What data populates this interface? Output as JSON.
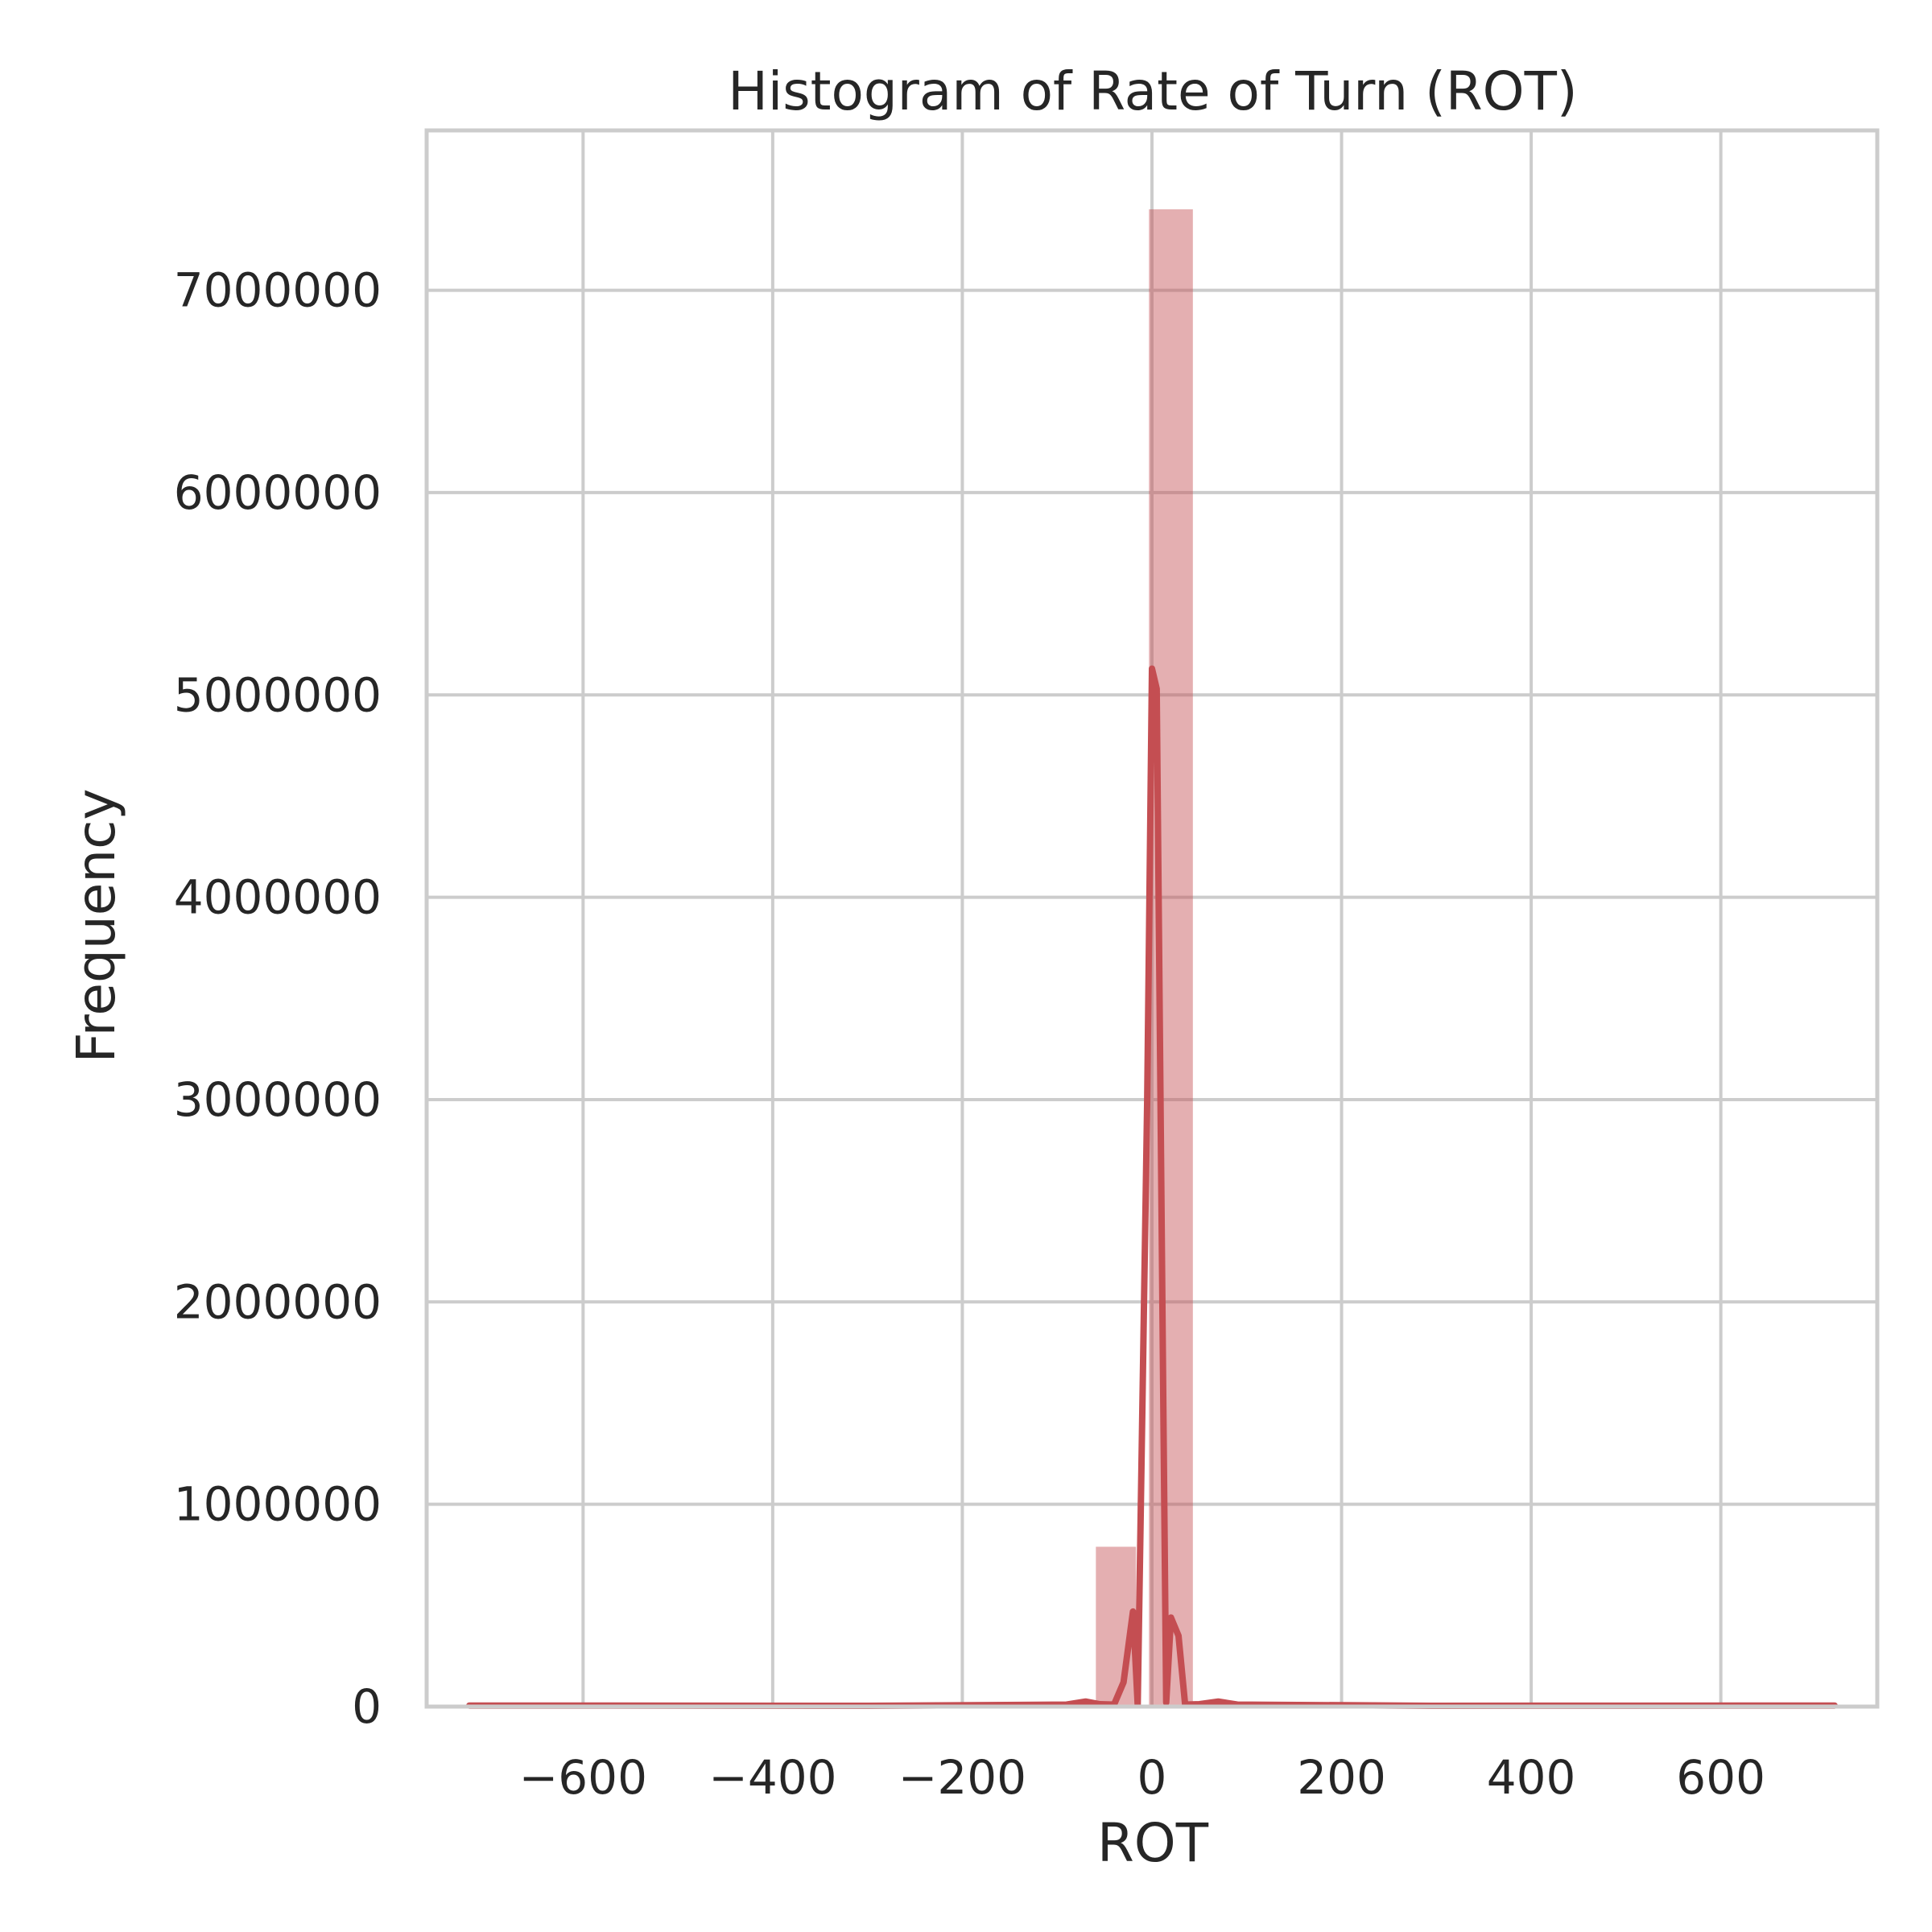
{
  "chart_data": {
    "type": "bar",
    "title": "Histogram of Rate of Turn (ROT)",
    "xlabel": "ROT",
    "ylabel": "Frequency",
    "xlim": [
      -765,
      765
    ],
    "ylim": [
      0,
      7790000
    ],
    "xticks": [
      {
        "value": -600,
        "label": "−600"
      },
      {
        "value": -400,
        "label": "−400"
      },
      {
        "value": -200,
        "label": "−200"
      },
      {
        "value": 0,
        "label": "0"
      },
      {
        "value": 200,
        "label": "200"
      },
      {
        "value": 400,
        "label": "400"
      },
      {
        "value": 600,
        "label": "600"
      }
    ],
    "yticks": [
      {
        "value": 0,
        "label": "0"
      },
      {
        "value": 1000000,
        "label": "1000000"
      },
      {
        "value": 2000000,
        "label": "2000000"
      },
      {
        "value": 3000000,
        "label": "3000000"
      },
      {
        "value": 4000000,
        "label": "4000000"
      },
      {
        "value": 5000000,
        "label": "5000000"
      },
      {
        "value": 6000000,
        "label": "6000000"
      },
      {
        "value": 7000000,
        "label": "7000000"
      }
    ],
    "grid": true,
    "legend": "none",
    "bar_color": "#c44e52",
    "bins": [
      {
        "x0": -720,
        "x1": -676,
        "count": 3000
      },
      {
        "x0": -676,
        "x1": -632,
        "count": 1000
      },
      {
        "x0": -632,
        "x1": -588,
        "count": 1000
      },
      {
        "x0": -588,
        "x1": -544,
        "count": 1000
      },
      {
        "x0": -544,
        "x1": -500,
        "count": 1000
      },
      {
        "x0": -500,
        "x1": -456,
        "count": 1000
      },
      {
        "x0": -456,
        "x1": -412,
        "count": 1000
      },
      {
        "x0": -412,
        "x1": -368,
        "count": 1000
      },
      {
        "x0": -368,
        "x1": -324,
        "count": 1000
      },
      {
        "x0": -324,
        "x1": -280,
        "count": 1000
      },
      {
        "x0": -280,
        "x1": -236,
        "count": 1000
      },
      {
        "x0": -236,
        "x1": -192,
        "count": 2000
      },
      {
        "x0": -192,
        "x1": -148,
        "count": 2000
      },
      {
        "x0": -148,
        "x1": -104,
        "count": 3000
      },
      {
        "x0": -104,
        "x1": -60,
        "count": 8000
      },
      {
        "x0": -60,
        "x1": -16,
        "count": 790000
      },
      {
        "x0": -4,
        "x1": 44,
        "count": 7400000
      },
      {
        "x0": 44,
        "x1": 88,
        "count": 12000
      },
      {
        "x0": 88,
        "x1": 132,
        "count": 3000
      },
      {
        "x0": 132,
        "x1": 176,
        "count": 2000
      },
      {
        "x0": 176,
        "x1": 220,
        "count": 2000
      },
      {
        "x0": 220,
        "x1": 264,
        "count": 1000
      },
      {
        "x0": 264,
        "x1": 308,
        "count": 1000
      },
      {
        "x0": 308,
        "x1": 352,
        "count": 1000
      },
      {
        "x0": 352,
        "x1": 396,
        "count": 1000
      },
      {
        "x0": 396,
        "x1": 440,
        "count": 1000
      },
      {
        "x0": 440,
        "x1": 484,
        "count": 1000
      },
      {
        "x0": 484,
        "x1": 528,
        "count": 1000
      },
      {
        "x0": 528,
        "x1": 572,
        "count": 1000
      },
      {
        "x0": 572,
        "x1": 616,
        "count": 1000
      },
      {
        "x0": 616,
        "x1": 660,
        "count": 1000
      },
      {
        "x0": 660,
        "x1": 720,
        "count": 3000
      }
    ],
    "kde": [
      [
        -720,
        5000
      ],
      [
        -300,
        4000
      ],
      [
        -120,
        9000
      ],
      [
        -90,
        10000
      ],
      [
        -70,
        25000
      ],
      [
        -55,
        12000
      ],
      [
        -40,
        10000
      ],
      [
        -30,
        120000
      ],
      [
        -20,
        470000
      ],
      [
        -15,
        8000
      ],
      [
        -5,
        3000000
      ],
      [
        0,
        5130000
      ],
      [
        5,
        5030000
      ],
      [
        12,
        1500000
      ],
      [
        15,
        20000
      ],
      [
        20,
        440000
      ],
      [
        28,
        350000
      ],
      [
        35,
        10000
      ],
      [
        50,
        12000
      ],
      [
        70,
        25000
      ],
      [
        90,
        10000
      ],
      [
        120,
        9000
      ],
      [
        300,
        4000
      ],
      [
        720,
        5000
      ]
    ]
  }
}
